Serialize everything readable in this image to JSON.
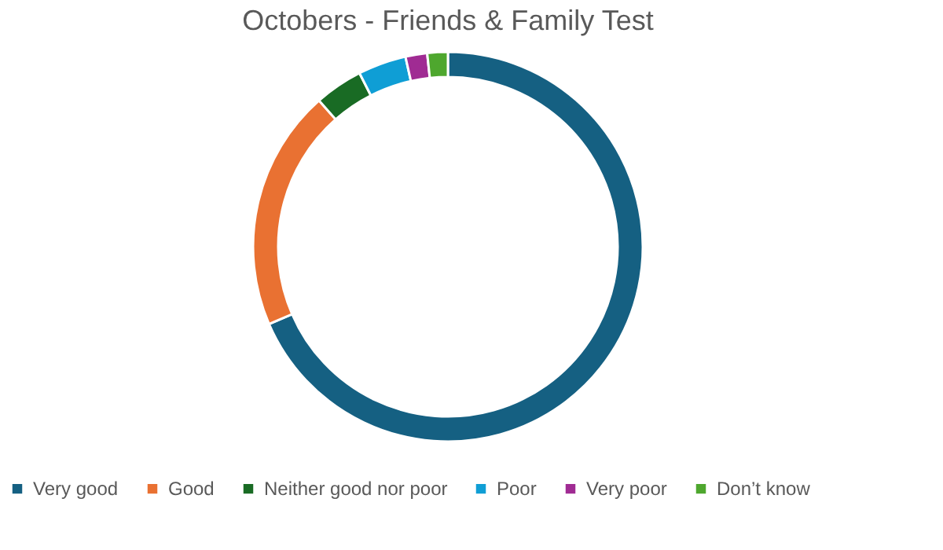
{
  "chart_data": {
    "type": "donut",
    "title": "Octobers - Friends & Family Test",
    "categories": [
      "Very good",
      "Good",
      "Neither good nor poor",
      "Poor",
      "Very poor",
      "Don’t know"
    ],
    "values": [
      68.5,
      20,
      4,
      4,
      1.8,
      1.7
    ],
    "colors": [
      "#156082",
      "#e97132",
      "#196b24",
      "#0f9ed5",
      "#a02b93",
      "#4ea72e"
    ],
    "legend": "bottom"
  }
}
